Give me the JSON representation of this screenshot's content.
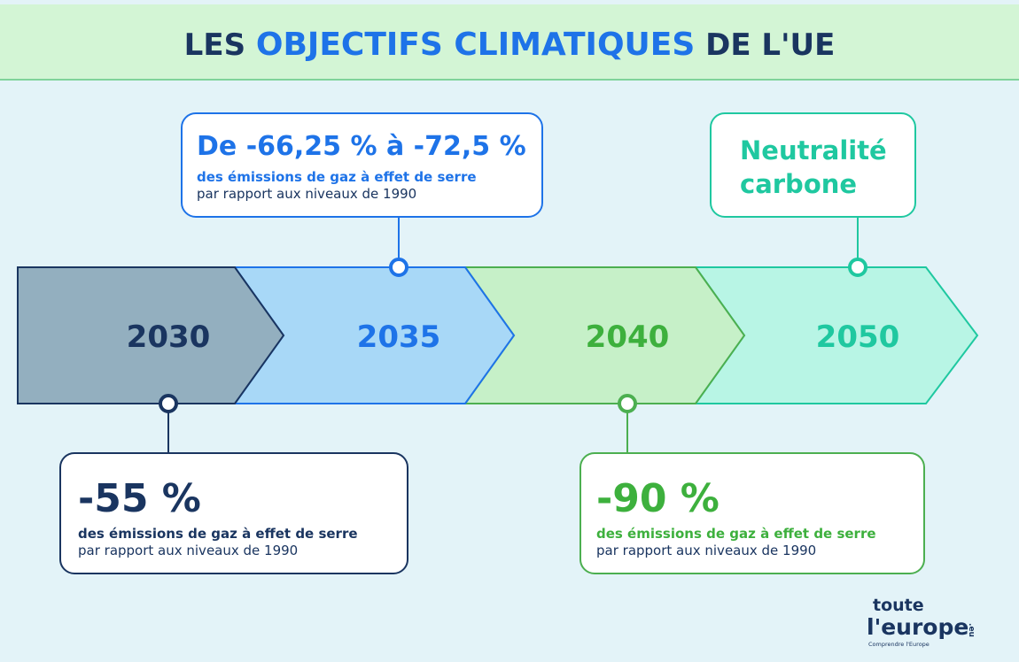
{
  "header": {
    "title": {
      "parts": [
        "LES ",
        "OBJECTIFS CLIMATIQUES",
        " DE L'UE"
      ]
    }
  },
  "timeline": [
    {
      "year": "2030",
      "headline": [
        "-55 %"
      ],
      "line1": "des émissions de gaz à effet de serre",
      "line2": "par rapport aux niveaux de 1990"
    },
    {
      "year": "2035",
      "headline": [
        "De -66,25 % à -72,5 %"
      ],
      "line1": "des émissions de gaz à effet de serre",
      "line2": "par rapport aux niveaux de 1990"
    },
    {
      "year": "2040",
      "headline": [
        "-90 %"
      ],
      "line1": "des émissions de gaz à effet de serre",
      "line2": "par rapport aux niveaux de 1990"
    },
    {
      "year": "2050",
      "headline": [
        "Neutralité",
        "carbone"
      ]
    }
  ],
  "logo": {
    "line1": "toute",
    "line2": "l'europe",
    "suffix": ".eu",
    "tagline": "Comprendre l'Europe"
  }
}
